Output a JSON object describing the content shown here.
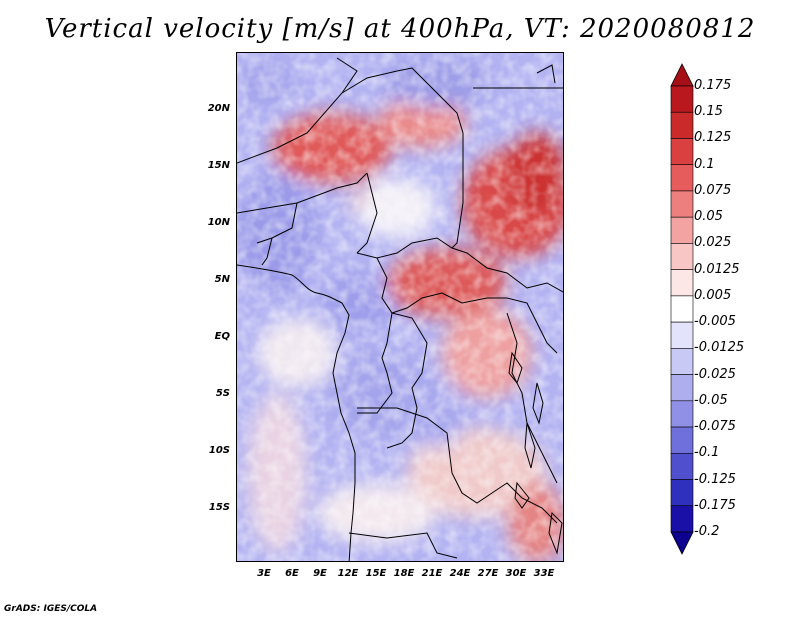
{
  "title": "Vertical velocity [m/s] at 400hPa, VT: 2020080812",
  "footer": "GrADS: IGES/COLA",
  "lat_labels": [
    "20N",
    "15N",
    "10N",
    "5N",
    "EQ",
    "5S",
    "10S",
    "15S"
  ],
  "lon_labels": [
    "3E",
    "6E",
    "9E",
    "12E",
    "15E",
    "18E",
    "21E",
    "24E",
    "27E",
    "30E",
    "33E"
  ],
  "colorbar": {
    "labels": [
      "0.175",
      "0.15",
      "0.125",
      "0.1",
      "0.075",
      "0.05",
      "0.025",
      "0.0125",
      "0.005",
      "-0.005",
      "-0.0125",
      "-0.025",
      "-0.05",
      "-0.075",
      "-0.1",
      "-0.125",
      "-0.175",
      "-0.2"
    ],
    "colors": [
      "#a50f15",
      "#b8181e",
      "#cb2a2a",
      "#db4040",
      "#e65c5c",
      "#ee7f7f",
      "#f4a3a3",
      "#f9c6c6",
      "#fde6e6",
      "#ffffff",
      "#e3e3fb",
      "#c9c9f5",
      "#aeaeef",
      "#9090e6",
      "#7070dc",
      "#5050cf",
      "#3030bf",
      "#1a10a8",
      "#0c0090"
    ]
  }
}
